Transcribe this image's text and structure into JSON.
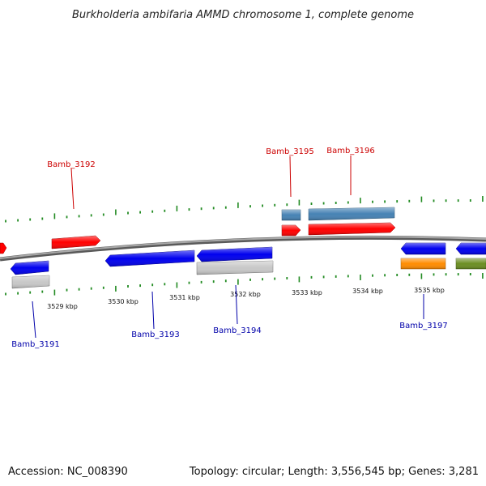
{
  "title": "Burkholderia ambifaria AMMD chromosome 1, complete genome",
  "footer": {
    "accession": "Accession: NC_008390",
    "summary": "Topology: circular; Length: 3,556,545 bp; Genes: 3,281"
  },
  "colors": {
    "upper_strand_label": "#cc0000",
    "lower_strand_label": "#0000aa",
    "ticks": "#228b22",
    "backbone": "#888888",
    "red_gene": "#ff0000",
    "blue_gene": "#0000ee",
    "steel_gene": "#4682b4",
    "grey_gene": "#c0c0c0",
    "orange_gene": "#ff8c00",
    "olive_gene": "#6b8e23"
  },
  "scale_labels": [
    "3529 kbp",
    "3530 kbp",
    "3531 kbp",
    "3532 kbp",
    "3533 kbp",
    "3534 kbp",
    "3535 kbp"
  ],
  "gene_labels": [
    "Bamb_3191",
    "Bamb_3192",
    "Bamb_3193",
    "Bamb_3194",
    "Bamb_3195",
    "Bamb_3196",
    "Bamb_3197"
  ]
}
